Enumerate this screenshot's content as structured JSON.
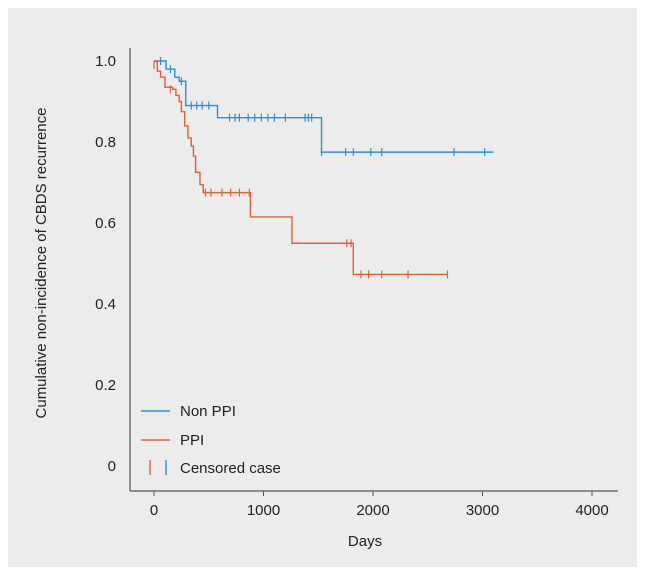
{
  "chart_data": {
    "type": "line",
    "subtype": "kaplan-meier step",
    "title": "",
    "xlabel": "Days",
    "ylabel": "Cumulative non-incidence of CBDS recurrence",
    "xlim": [
      0,
      4000
    ],
    "ylim": [
      0,
      1.0
    ],
    "x_ticks": [
      "0",
      "1000",
      "2000",
      "3000",
      "4000"
    ],
    "y_ticks": [
      "0",
      "0.2",
      "0.4",
      "0.6",
      "0.8",
      "1.0"
    ],
    "grid": false,
    "legend_position": "bottom-left",
    "colors": {
      "non_ppi": "#2b8fd4",
      "ppi": "#e0603a",
      "axis": "#555555",
      "background": "#ececec"
    },
    "legend": {
      "non_ppi": "Non PPI",
      "ppi": "PPI",
      "censored": "Censored case"
    },
    "series": [
      {
        "name": "Non PPI",
        "color": "#2b8fd4",
        "steps": [
          [
            0,
            1.0
          ],
          [
            110,
            0.98
          ],
          [
            190,
            0.96
          ],
          [
            230,
            0.95
          ],
          [
            290,
            0.89
          ],
          [
            580,
            0.86
          ],
          [
            1530,
            0.775
          ],
          [
            3100,
            0.775
          ]
        ],
        "censored": [
          [
            60,
            1.0
          ],
          [
            150,
            0.98
          ],
          [
            250,
            0.95
          ],
          [
            340,
            0.89
          ],
          [
            390,
            0.89
          ],
          [
            440,
            0.89
          ],
          [
            500,
            0.89
          ],
          [
            690,
            0.86
          ],
          [
            740,
            0.86
          ],
          [
            780,
            0.86
          ],
          [
            860,
            0.86
          ],
          [
            920,
            0.86
          ],
          [
            980,
            0.86
          ],
          [
            1040,
            0.86
          ],
          [
            1100,
            0.86
          ],
          [
            1200,
            0.86
          ],
          [
            1380,
            0.86
          ],
          [
            1410,
            0.86
          ],
          [
            1440,
            0.86
          ],
          [
            1530,
            0.775
          ],
          [
            1750,
            0.775
          ],
          [
            1820,
            0.775
          ],
          [
            1980,
            0.775
          ],
          [
            2080,
            0.775
          ],
          [
            2740,
            0.775
          ],
          [
            3020,
            0.775
          ]
        ]
      },
      {
        "name": "PPI",
        "color": "#e0603a",
        "steps": [
          [
            0,
            1.0
          ],
          [
            30,
            0.975
          ],
          [
            60,
            0.96
          ],
          [
            100,
            0.935
          ],
          [
            170,
            0.93
          ],
          [
            200,
            0.915
          ],
          [
            230,
            0.9
          ],
          [
            250,
            0.875
          ],
          [
            280,
            0.84
          ],
          [
            310,
            0.81
          ],
          [
            340,
            0.79
          ],
          [
            360,
            0.765
          ],
          [
            380,
            0.725
          ],
          [
            420,
            0.695
          ],
          [
            450,
            0.675
          ],
          [
            880,
            0.615
          ],
          [
            1260,
            0.55
          ],
          [
            1820,
            0.473
          ],
          [
            2680,
            0.473
          ]
        ],
        "censored": [
          [
            0,
            0.99
          ],
          [
            150,
            0.93
          ],
          [
            470,
            0.675
          ],
          [
            520,
            0.675
          ],
          [
            620,
            0.675
          ],
          [
            700,
            0.675
          ],
          [
            780,
            0.675
          ],
          [
            870,
            0.675
          ],
          [
            1760,
            0.55
          ],
          [
            1800,
            0.55
          ],
          [
            1890,
            0.473
          ],
          [
            1960,
            0.473
          ],
          [
            2080,
            0.473
          ],
          [
            2320,
            0.473
          ],
          [
            2680,
            0.473
          ]
        ]
      }
    ]
  }
}
